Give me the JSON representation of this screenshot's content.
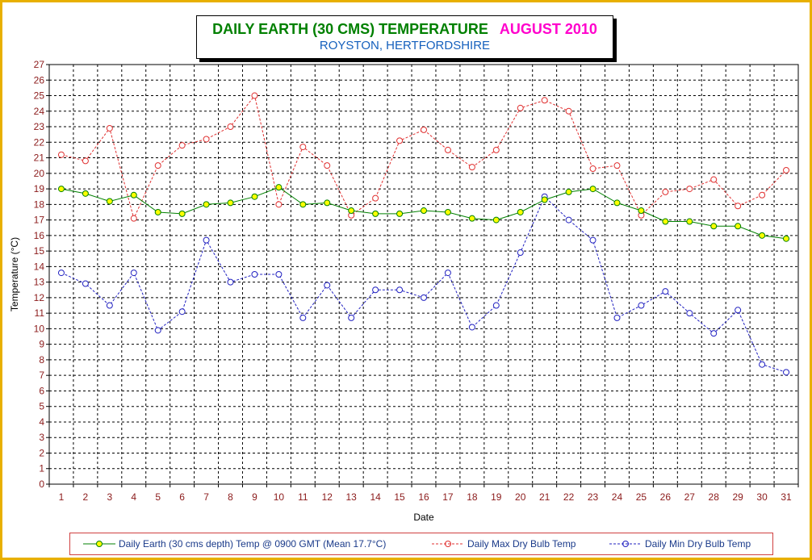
{
  "title": {
    "main": "DAILY EARTH (30 CMS) TEMPERATURE",
    "month": "AUGUST 2010",
    "subtitle": "ROYSTON, HERTFORDSHIRE"
  },
  "colors": {
    "frame": "#e8b000",
    "title_main": "#008000",
    "title_month": "#ff00cc",
    "subtitle": "#1560bd",
    "earth": "#008000",
    "earth_marker": "#ffff00",
    "max": "#e03030",
    "min": "#2020c0",
    "tick_label": "#8b1a1a"
  },
  "chart_data": {
    "type": "line",
    "xlabel": "Date",
    "ylabel": "Temperature (°C)",
    "ylim": [
      0,
      27
    ],
    "grid": true,
    "legend_position": "bottom",
    "x": [
      1,
      2,
      3,
      4,
      5,
      6,
      7,
      8,
      9,
      10,
      11,
      12,
      13,
      14,
      15,
      16,
      17,
      18,
      19,
      20,
      21,
      22,
      23,
      24,
      25,
      26,
      27,
      28,
      29,
      30,
      31
    ],
    "series": [
      {
        "name": "Daily Earth (30 cms depth) Temp @ 0900 GMT (Mean 17.7°C)",
        "values": [
          19.0,
          18.7,
          18.2,
          18.6,
          17.5,
          17.4,
          18.0,
          18.1,
          18.5,
          19.1,
          18.0,
          18.1,
          17.6,
          17.4,
          17.4,
          17.6,
          17.5,
          17.1,
          17.0,
          17.5,
          18.3,
          18.8,
          19.0,
          18.1,
          17.6,
          16.9,
          16.9,
          16.6,
          16.6,
          16.0,
          15.8
        ]
      },
      {
        "name": "Daily Max Dry Bulb Temp",
        "values": [
          21.2,
          20.8,
          22.9,
          17.1,
          20.5,
          21.8,
          22.2,
          23.0,
          25.0,
          18.0,
          21.7,
          20.5,
          17.3,
          18.4,
          22.1,
          22.8,
          21.5,
          20.4,
          21.5,
          24.2,
          24.7,
          24.0,
          20.3,
          20.5,
          17.3,
          18.8,
          19.0,
          19.6,
          17.9,
          18.6,
          20.2
        ]
      },
      {
        "name": "Daily Min Dry Bulb Temp",
        "values": [
          13.6,
          12.9,
          11.5,
          13.6,
          9.9,
          11.1,
          15.7,
          13.0,
          13.5,
          13.5,
          10.7,
          12.8,
          10.7,
          12.5,
          12.5,
          12.0,
          13.6,
          10.1,
          11.5,
          14.9,
          18.5,
          17.0,
          15.7,
          10.7,
          11.5,
          12.4,
          11.0,
          9.7,
          11.2,
          7.7,
          7.2
        ]
      }
    ]
  }
}
